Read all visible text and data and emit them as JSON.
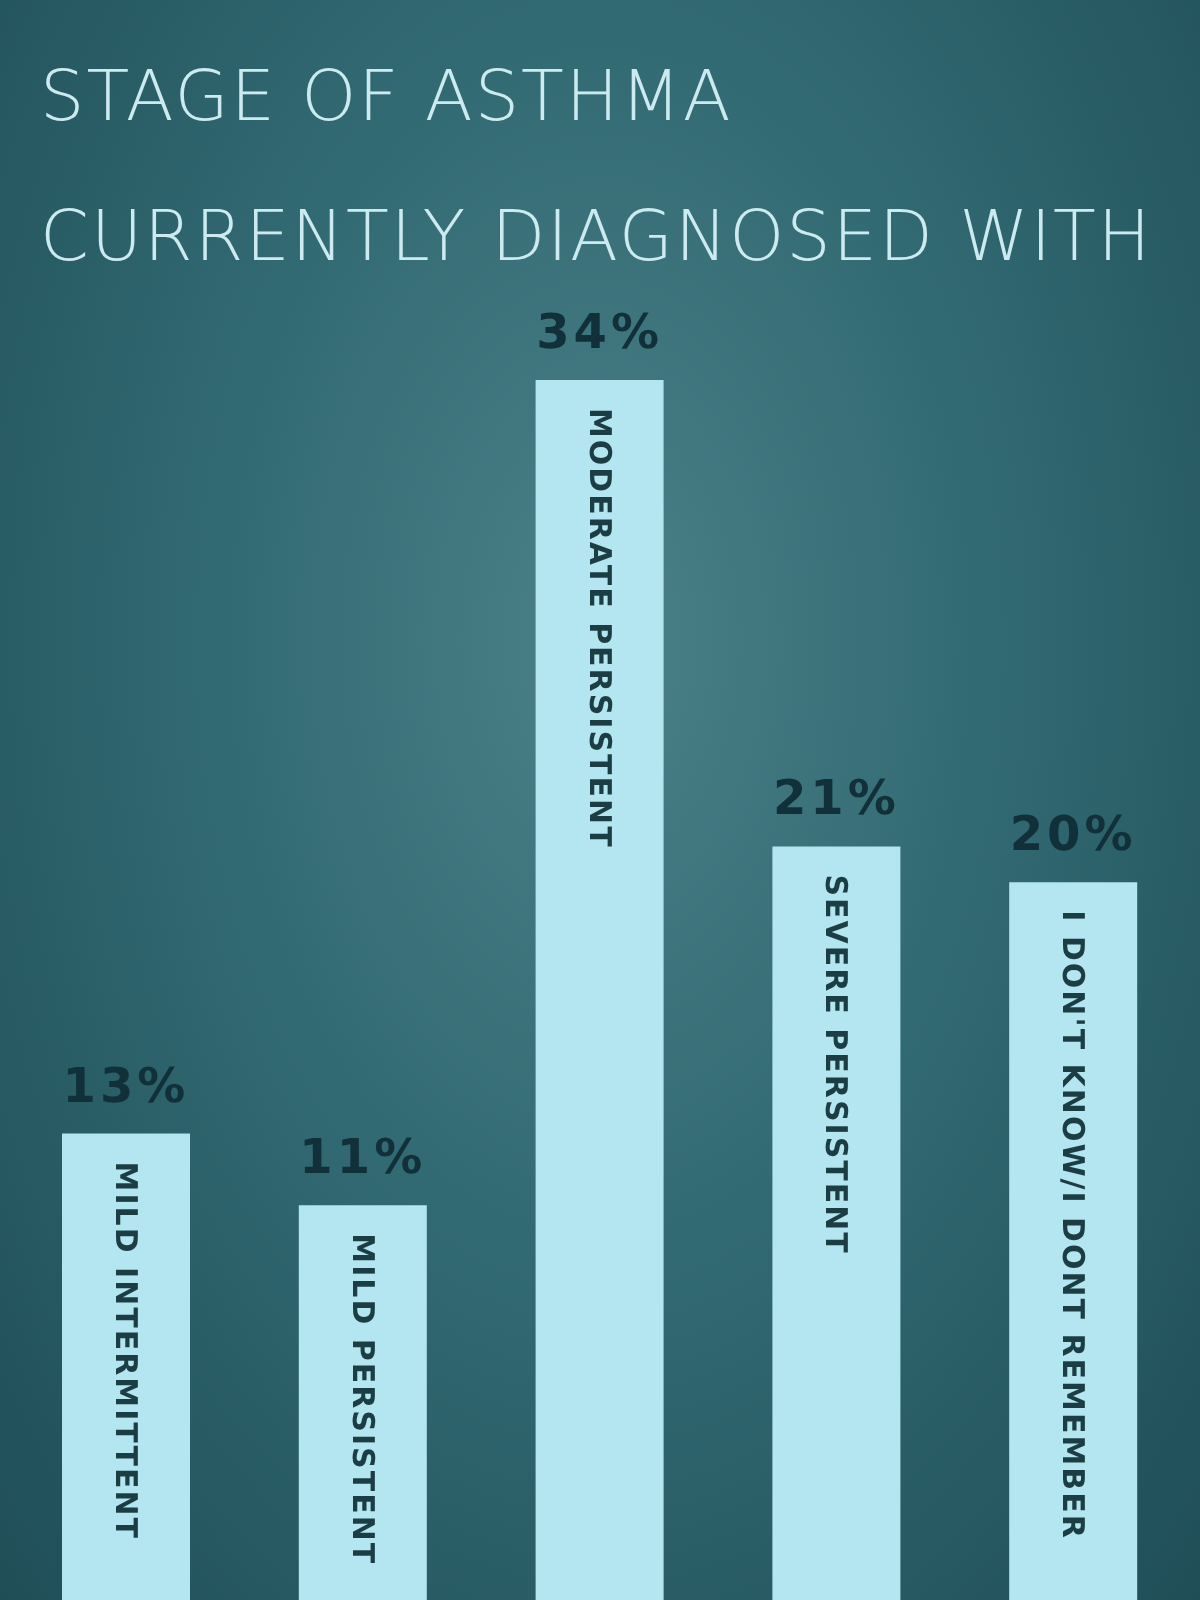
{
  "chart_data": {
    "type": "bar",
    "title": "STAGE OF ASTHMA\nCURRENTLY DIAGNOSED WITH",
    "categories": [
      "MILD INTERMITTENT",
      "MILD PERSISTENT",
      "MODERATE PERSISTENT",
      "SEVERE PERSISTENT",
      "I DON'T KNOW/I DONT REMEMBER"
    ],
    "values": [
      13,
      11,
      34,
      21,
      20
    ],
    "value_labels": [
      "13%",
      "11%",
      "34%",
      "21%",
      "20%"
    ],
    "color": "#b3e6f0",
    "grid": false,
    "legend": false
  }
}
